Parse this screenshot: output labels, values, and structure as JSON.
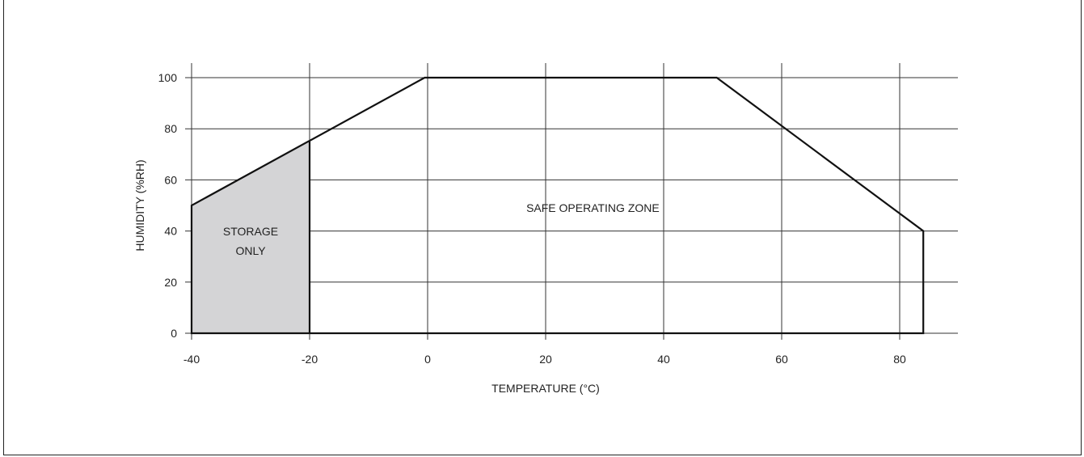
{
  "chart_data": {
    "type": "area",
    "xlabel": "TEMPERATURE (°C)",
    "ylabel": "HUMIDITY (%RH)",
    "xlim": [
      -40,
      90
    ],
    "ylim": [
      0,
      100
    ],
    "xticks": [
      -40,
      -20,
      0,
      20,
      40,
      60,
      80
    ],
    "yticks": [
      0,
      20,
      40,
      60,
      80,
      100
    ],
    "grid": true,
    "regions": [
      {
        "label": "SAFE OPERATING ZONE",
        "points": [
          [
            -40,
            0
          ],
          [
            -40,
            50
          ],
          [
            -0.5,
            100
          ],
          [
            49,
            100
          ],
          [
            84,
            40
          ],
          [
            84,
            0
          ]
        ]
      },
      {
        "label": "STORAGE ONLY",
        "label_lines": [
          "STORAGE",
          "ONLY"
        ],
        "color": "#d4d4d6",
        "points": [
          [
            -40,
            0
          ],
          [
            -40,
            50
          ],
          [
            -20,
            75
          ],
          [
            -20,
            0
          ]
        ]
      }
    ],
    "annotations": [
      {
        "text": "SAFE OPERATING ZONE",
        "x": 28,
        "y": 49
      },
      {
        "text_lines": [
          "STORAGE",
          "ONLY"
        ],
        "x": -30,
        "y": 36
      }
    ]
  }
}
